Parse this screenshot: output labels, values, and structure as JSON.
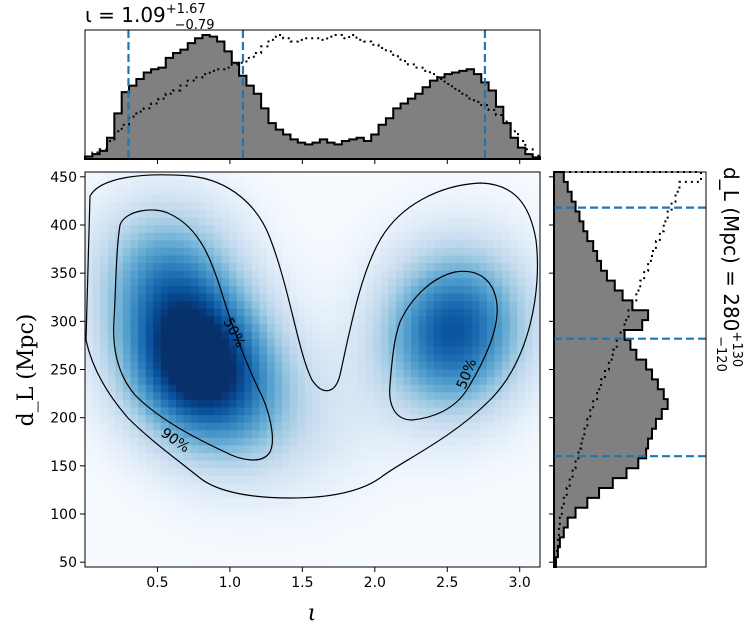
{
  "chart_data": {
    "type": "heatmap",
    "layout": "corner-plot-2d-with-marginals",
    "x_param": "ι",
    "y_param_label": "d_L (Mpc)",
    "x_title": {
      "prefix": "ι = ",
      "median": "1.09",
      "upper": "+1.67",
      "lower": "−0.79"
    },
    "y_title": {
      "prefix": "d_L (Mpc) = ",
      "median": "280",
      "upper": "+130",
      "lower": "−120"
    },
    "xlim": [
      0.0,
      3.14
    ],
    "ylim": [
      45,
      455
    ],
    "x_ticks": [
      "0.5",
      "1.0",
      "1.5",
      "2.0",
      "2.5",
      "3.0"
    ],
    "x_tick_values": [
      0.5,
      1.0,
      1.5,
      2.0,
      2.5,
      3.0
    ],
    "y_ticks": [
      "50",
      "100",
      "150",
      "200",
      "250",
      "300",
      "350",
      "400",
      "450"
    ],
    "y_tick_values": [
      50,
      100,
      150,
      200,
      250,
      300,
      350,
      400,
      450
    ],
    "x_quantiles": [
      0.3,
      1.09,
      2.76
    ],
    "y_quantiles": [
      160,
      282,
      418
    ],
    "contour_labels": [
      "50%",
      "50%",
      "90%"
    ],
    "colormap": "Blues",
    "density_peaks": [
      {
        "x": 0.75,
        "y": 260,
        "weight": 1.0
      },
      {
        "x": 0.55,
        "y": 350,
        "weight": 0.55
      },
      {
        "x": 1.05,
        "y": 210,
        "weight": 0.35
      },
      {
        "x": 2.5,
        "y": 270,
        "weight": 0.55
      },
      {
        "x": 2.6,
        "y": 315,
        "weight": 0.45
      },
      {
        "x": 1.6,
        "y": 190,
        "weight": 0.1
      }
    ],
    "x_hist_posterior": [
      3,
      6,
      10,
      26,
      56,
      82,
      90,
      98,
      106,
      110,
      112,
      124,
      130,
      134,
      142,
      148,
      152,
      150,
      144,
      132,
      118,
      102,
      90,
      80,
      62,
      44,
      36,
      30,
      24,
      20,
      18,
      20,
      24,
      20,
      18,
      22,
      24,
      26,
      22,
      30,
      42,
      50,
      62,
      68,
      74,
      80,
      88,
      96,
      100,
      104,
      106,
      108,
      110,
      104,
      94,
      84,
      64,
      44,
      26,
      14,
      6,
      2
    ],
    "x_hist_prior": [
      3,
      8,
      12,
      22,
      34,
      42,
      52,
      58,
      62,
      68,
      74,
      80,
      84,
      90,
      96,
      100,
      104,
      108,
      110,
      112,
      116,
      118,
      124,
      130,
      138,
      146,
      152,
      148,
      144,
      146,
      148,
      148,
      146,
      150,
      152,
      148,
      152,
      146,
      144,
      140,
      136,
      132,
      126,
      120,
      116,
      112,
      108,
      104,
      98,
      92,
      86,
      80,
      74,
      70,
      66,
      60,
      54,
      46,
      34,
      22,
      12,
      4
    ],
    "y_hist_posterior": [
      2,
      4,
      6,
      10,
      14,
      22,
      34,
      46,
      60,
      74,
      86,
      94,
      96,
      100,
      104,
      110,
      116,
      112,
      106,
      100,
      94,
      84,
      78,
      72,
      90,
      96,
      80,
      70,
      62,
      54,
      48,
      44,
      40,
      34,
      30,
      26,
      22,
      18,
      14,
      10
    ],
    "y_hist_prior": [
      2,
      3,
      4,
      5,
      6,
      8,
      10,
      13,
      16,
      19,
      22,
      25,
      28,
      31,
      34,
      37,
      40,
      44,
      48,
      52,
      56,
      60,
      64,
      68,
      72,
      76,
      80,
      84,
      88,
      92,
      96,
      100,
      104,
      108,
      112,
      116,
      120,
      124,
      128,
      150
    ]
  }
}
